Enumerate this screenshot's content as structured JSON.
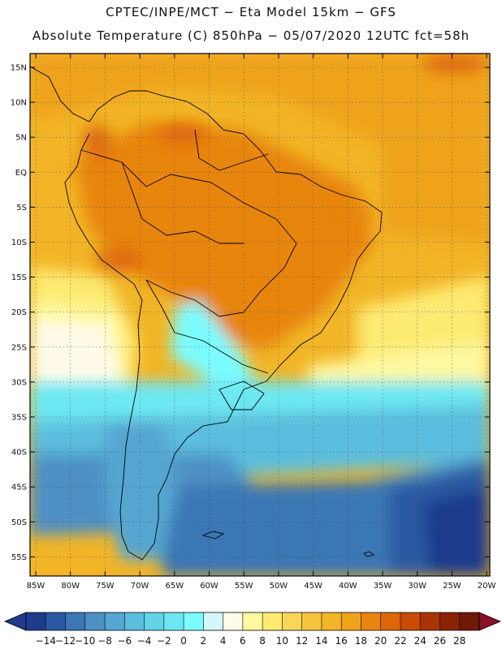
{
  "header": {
    "line1": "CPTEC/INPE/MCT −  Eta Model 15km − GFS",
    "line2": "Absolute Temperature (C) 850hPa − 05/07/2020 12UTC fct=58h"
  },
  "map": {
    "lat_labels": [
      "15N",
      "10N",
      "5N",
      "EQ",
      "5S",
      "10S",
      "15S",
      "20S",
      "25S",
      "30S",
      "35S",
      "40S",
      "45S",
      "50S",
      "55S"
    ],
    "lon_labels": [
      "85W",
      "80W",
      "75W",
      "70W",
      "65W",
      "60W",
      "55W",
      "50W",
      "45W",
      "40W",
      "35W",
      "30W",
      "25W",
      "20W"
    ],
    "gridlines": true
  },
  "colorbar": {
    "labels": [
      "-14",
      "-12",
      "-10",
      "-8",
      "-6",
      "-4",
      "-2",
      "0",
      "2",
      "4",
      "6",
      "8",
      "10",
      "12",
      "14",
      "16",
      "18",
      "20",
      "22",
      "24",
      "26",
      "28"
    ],
    "colors": [
      "#1f3b8c",
      "#2a5aa3",
      "#3b77b5",
      "#4d90c5",
      "#55a6d1",
      "#5cbede",
      "#63d4e8",
      "#6de8f2",
      "#7afcff",
      "#d4f7fc",
      "#fffbe8",
      "#fff8a0",
      "#fdea72",
      "#f9d657",
      "#f5c63e",
      "#f2b527",
      "#efa31a",
      "#e88510",
      "#dd650a",
      "#c94b06",
      "#a93505",
      "#8a2304",
      "#6e1a06"
    ]
  }
}
